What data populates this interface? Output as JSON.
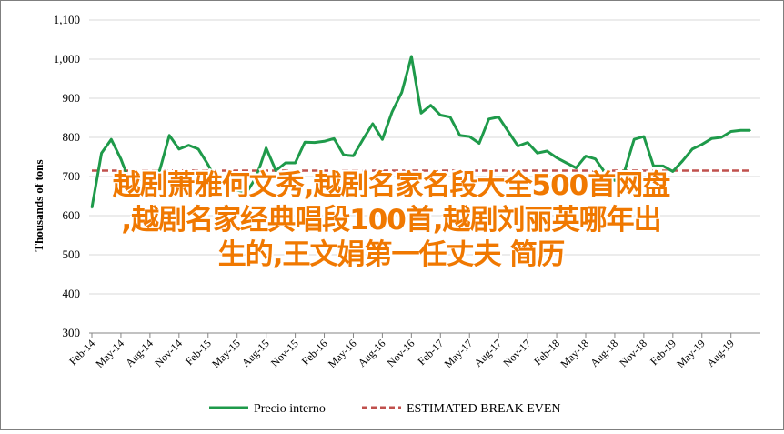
{
  "chart_data": {
    "type": "line",
    "ylabel": "Thousands of tons",
    "ylim": [
      300,
      1100
    ],
    "yticks": [
      300,
      400,
      500,
      600,
      700,
      800,
      900,
      1000,
      1100
    ],
    "ytick_labels": [
      "300",
      "400",
      "500",
      "600",
      "700",
      "800",
      "900",
      "1,000",
      "1,100"
    ],
    "grid": "horizontal",
    "legend_position": "bottom",
    "x_labels": [
      "Feb-14",
      "May-14",
      "Aug-14",
      "Nov-14",
      "Feb-15",
      "May-15",
      "Aug-15",
      "Nov-15",
      "Feb-16",
      "May-16",
      "Aug-16",
      "Nov-16",
      "Feb-17",
      "May-17",
      "Aug-17",
      "Nov-17",
      "Feb-18",
      "May-18",
      "Aug-18",
      "Nov-18",
      "Feb-19",
      "May-19",
      "Aug-19"
    ],
    "series": [
      {
        "name": "Precio interno",
        "color": "#1e9a4a",
        "style": "solid",
        "x": [
          "Feb-14",
          "Mar-14",
          "Apr-14",
          "May-14",
          "Jun-14",
          "Jul-14",
          "Aug-14",
          "Sep-14",
          "Oct-14",
          "Nov-14",
          "Dec-14",
          "Jan-15",
          "Feb-15",
          "Mar-15",
          "Apr-15",
          "May-15",
          "Jun-15",
          "Jul-15",
          "Aug-15",
          "Sep-15",
          "Oct-15",
          "Nov-15",
          "Dec-15",
          "Jan-16",
          "Feb-16",
          "Mar-16",
          "Apr-16",
          "May-16",
          "Jun-16",
          "Jul-16",
          "Aug-16",
          "Sep-16",
          "Oct-16",
          "Nov-16",
          "Dec-16",
          "Jan-17",
          "Feb-17",
          "Mar-17",
          "Apr-17",
          "May-17",
          "Jun-17",
          "Jul-17",
          "Aug-17",
          "Sep-17",
          "Oct-17",
          "Nov-17",
          "Dec-17",
          "Jan-18",
          "Feb-18",
          "Mar-18",
          "Apr-18",
          "May-18",
          "Jun-18",
          "Jul-18",
          "Aug-18",
          "Sep-18",
          "Oct-18",
          "Nov-18",
          "Dec-18",
          "Jan-19",
          "Feb-19",
          "Mar-19",
          "Apr-19",
          "May-19",
          "Jun-19",
          "Jul-19",
          "Aug-19",
          "Sep-19",
          "Oct-19"
        ],
        "values": [
          620,
          760,
          795,
          745,
          680,
          690,
          710,
          715,
          805,
          770,
          780,
          770,
          730,
          680,
          685,
          665,
          660,
          700,
          773,
          715,
          735,
          735,
          788,
          787,
          790,
          797,
          755,
          753,
          795,
          835,
          795,
          865,
          915,
          1007,
          862,
          882,
          857,
          852,
          805,
          802,
          785,
          847,
          852,
          815,
          778,
          787,
          760,
          765,
          748,
          735,
          722,
          752,
          745,
          710,
          690,
          713,
          795,
          802,
          727,
          727,
          713,
          740,
          770,
          782,
          797,
          800,
          815,
          818,
          818
        ]
      },
      {
        "name": "ESTIMATED BREAK EVEN",
        "color": "#c0504d",
        "style": "dashed",
        "values": [
          715
        ]
      }
    ]
  },
  "overlay": {
    "line1": "越剧萧雅何文秀,越剧名家名段大全500首网盘",
    "line2": ",越剧名家经典唱段100首,越剧刘丽英哪年出",
    "line3": "生的,王文娟第一任丈夫 简历"
  }
}
